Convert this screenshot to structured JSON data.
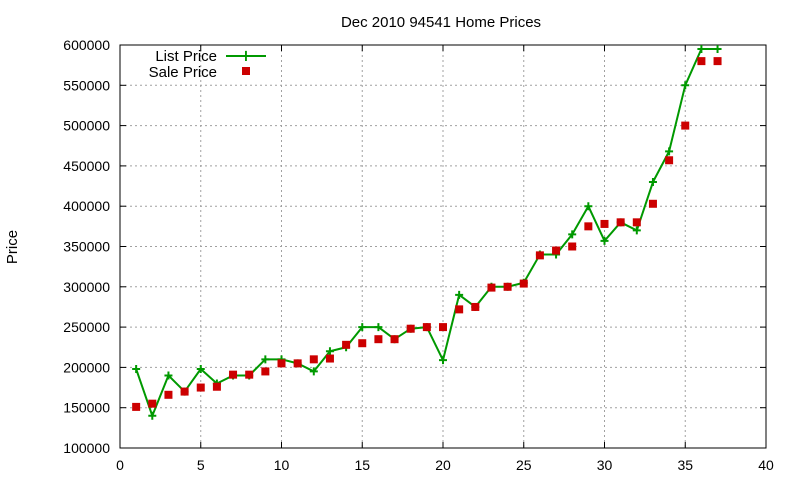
{
  "chart_data": {
    "type": "line",
    "title": "Dec 2010 94541 Home Prices",
    "xlabel": "",
    "ylabel": "Price",
    "xlim": [
      0,
      40
    ],
    "ylim": [
      100000,
      600000
    ],
    "xticks": [
      0,
      5,
      10,
      15,
      20,
      25,
      30,
      35,
      40
    ],
    "yticks": [
      100000,
      150000,
      200000,
      250000,
      300000,
      350000,
      400000,
      450000,
      500000,
      550000,
      600000
    ],
    "grid": true,
    "legend_position": "top-left",
    "series": [
      {
        "name": "List Price",
        "style": "line-with-plus-markers",
        "color": "#009900",
        "x": [
          1,
          2,
          3,
          4,
          5,
          6,
          7,
          8,
          9,
          10,
          11,
          12,
          13,
          14,
          15,
          16,
          17,
          18,
          19,
          20,
          21,
          22,
          23,
          24,
          25,
          26,
          27,
          28,
          29,
          30,
          31,
          32,
          33,
          34,
          35,
          36,
          37
        ],
        "values": [
          198000,
          140000,
          190000,
          170000,
          198000,
          180000,
          190000,
          190000,
          210000,
          210000,
          205000,
          195000,
          220000,
          225000,
          250000,
          250000,
          235000,
          248000,
          250000,
          209000,
          290000,
          275000,
          300000,
          300000,
          305000,
          340000,
          340000,
          365000,
          400000,
          357000,
          380000,
          370000,
          430000,
          468000,
          550000,
          595000,
          595000
        ]
      },
      {
        "name": "Sale Price",
        "style": "square-markers",
        "color": "#cc0000",
        "x": [
          1,
          2,
          3,
          4,
          5,
          6,
          7,
          8,
          9,
          10,
          11,
          12,
          13,
          14,
          15,
          16,
          17,
          18,
          19,
          20,
          21,
          22,
          23,
          24,
          25,
          26,
          27,
          28,
          29,
          30,
          31,
          32,
          33,
          34,
          35,
          36,
          37
        ],
        "values": [
          151000,
          155000,
          166000,
          170000,
          175000,
          176000,
          191000,
          191000,
          195000,
          205000,
          205000,
          210000,
          211000,
          228000,
          230000,
          235000,
          235000,
          248000,
          250000,
          250000,
          272000,
          275000,
          299000,
          300000,
          304000,
          339000,
          345000,
          350000,
          375000,
          378000,
          380000,
          380000,
          403000,
          457000,
          500000,
          580000,
          580000
        ]
      }
    ]
  }
}
